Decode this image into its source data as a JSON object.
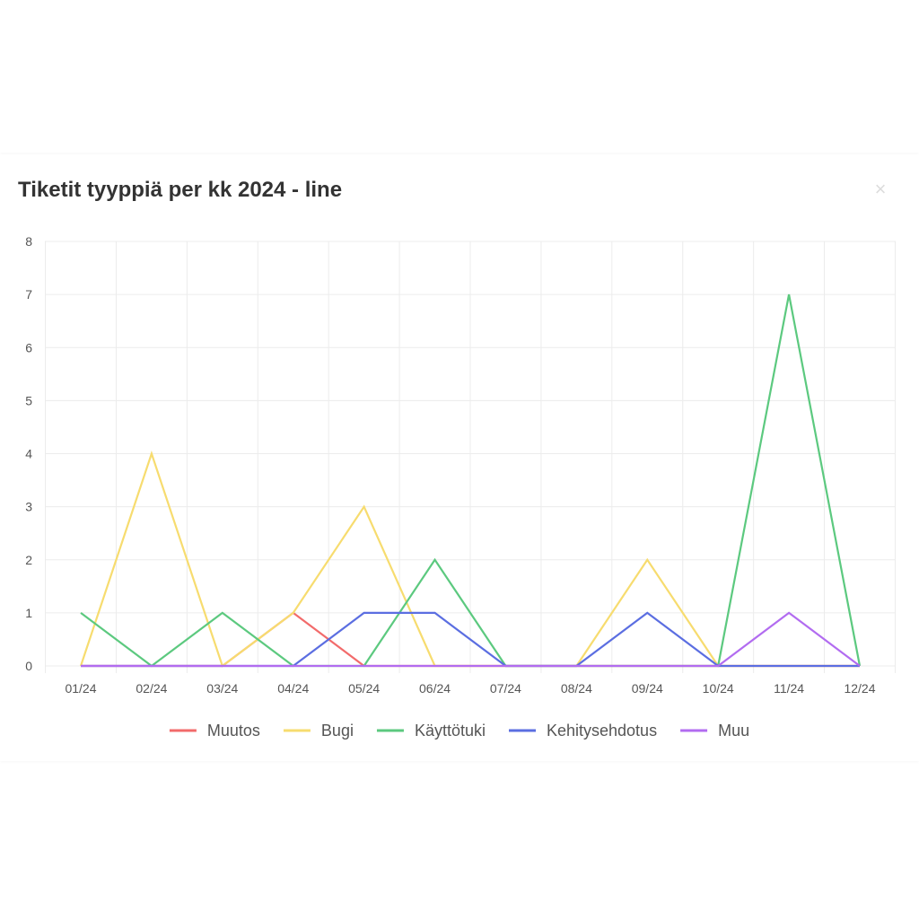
{
  "card": {
    "title": "Tiketit tyyppiä per kk 2024 - line",
    "close_label": "×"
  },
  "chart_data": {
    "type": "line",
    "title": "Tiketit tyyppiä per kk 2024 - line",
    "xlabel": "",
    "ylabel": "",
    "categories": [
      "01/24",
      "02/24",
      "03/24",
      "04/24",
      "05/24",
      "06/24",
      "07/24",
      "08/24",
      "09/24",
      "10/24",
      "11/24",
      "12/24"
    ],
    "ylim": [
      0,
      8
    ],
    "yticks": [
      0,
      1,
      2,
      3,
      4,
      5,
      6,
      7,
      8
    ],
    "grid": true,
    "legend_position": "bottom",
    "series": [
      {
        "name": "Muutos",
        "color": "#f26b6b",
        "values": [
          0,
          0,
          0,
          1,
          0,
          0,
          0,
          0,
          0,
          0,
          0,
          0
        ]
      },
      {
        "name": "Bugi",
        "color": "#f7dc6f",
        "values": [
          0,
          4,
          0,
          1,
          3,
          0,
          0,
          0,
          2,
          0,
          0,
          0
        ]
      },
      {
        "name": "Käyttötuki",
        "color": "#5cc97f",
        "values": [
          1,
          0,
          1,
          0,
          0,
          2,
          0,
          0,
          0,
          0,
          7,
          0
        ]
      },
      {
        "name": "Kehitysehdotus",
        "color": "#5b6ee1",
        "values": [
          0,
          0,
          0,
          0,
          1,
          1,
          0,
          0,
          1,
          0,
          0,
          0
        ]
      },
      {
        "name": "Muu",
        "color": "#b26cf0",
        "values": [
          0,
          0,
          0,
          0,
          0,
          0,
          0,
          0,
          0,
          0,
          1,
          0
        ]
      }
    ]
  }
}
